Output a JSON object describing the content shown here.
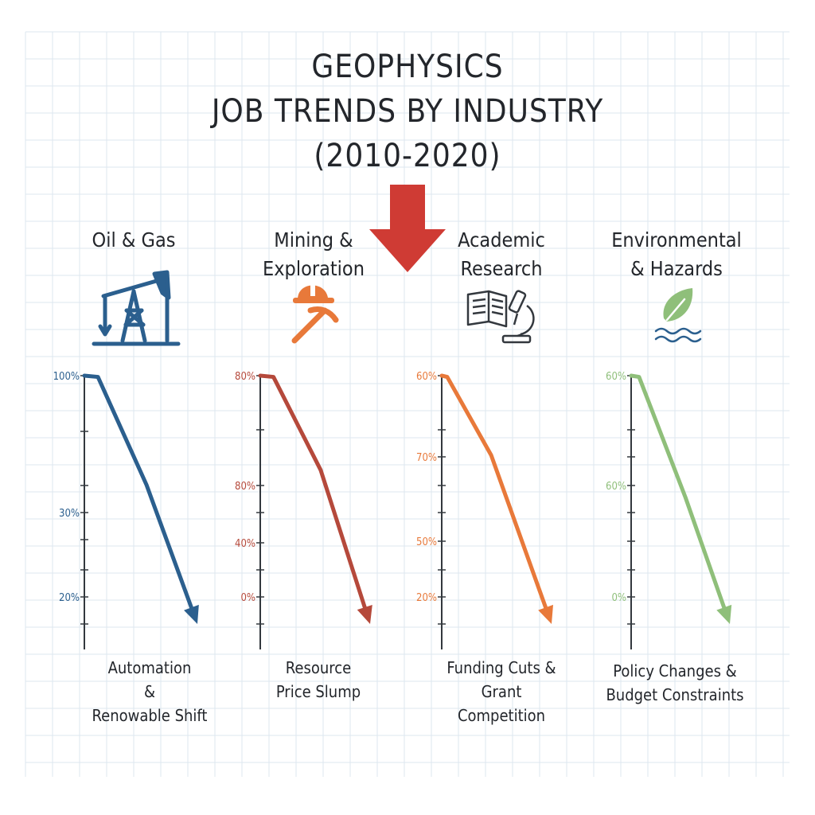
{
  "title": {
    "line1": "GEOPHYSICS",
    "line2": "JOB TRENDS BY INDUSTRY",
    "line3": "(2010-2020)"
  },
  "colors": {
    "title": "#23262b",
    "main_arrow": "#cf3b34",
    "grid": "#dde7ef"
  },
  "panels": [
    {
      "label_lines": [
        "Oil & Gas"
      ],
      "icon": "oil-pump-icon",
      "color": "#2b5f8e",
      "cause_lines": [
        "Automation",
        "&",
        "Renowable Shift"
      ]
    },
    {
      "label_lines": [
        "Mining &",
        "Exploration"
      ],
      "icon": "hardhat-pickaxe-icon",
      "color": "#b5493b",
      "cause_lines": [
        "Resource",
        "Price Slump"
      ]
    },
    {
      "label_lines": [
        "Academic",
        "Research"
      ],
      "icon": "book-microscope-icon",
      "color": "#e8793a",
      "cause_lines": [
        "Funding Cuts &",
        "Grant",
        "Competition"
      ]
    },
    {
      "label_lines": [
        "Environmental",
        "& Hazards"
      ],
      "icon": "leaf-water-icon",
      "color": "#8fbf7a",
      "cause_lines": [
        "Policy Changes &",
        "Budget Constraints"
      ]
    }
  ],
  "chart_data": [
    {
      "type": "line",
      "title": "Oil & Gas",
      "tick_labels": [
        "100%",
        "30%",
        "20%"
      ],
      "x": [
        0,
        0.12,
        0.55,
        1.0
      ],
      "y": [
        1.0,
        0.995,
        0.56,
        0.0
      ]
    },
    {
      "type": "line",
      "title": "Mining & Exploration",
      "tick_labels": [
        "80%",
        "80%",
        "40%",
        "0%"
      ],
      "x": [
        0,
        0.12,
        0.55,
        1.0
      ],
      "y": [
        1.0,
        0.995,
        0.62,
        0.0
      ]
    },
    {
      "type": "line",
      "title": "Academic Research",
      "tick_labels": [
        "60%",
        "70%",
        "50%",
        "20%"
      ],
      "x": [
        0,
        0.05,
        0.45,
        1.0
      ],
      "y": [
        1.0,
        0.995,
        0.68,
        0.0
      ]
    },
    {
      "type": "line",
      "title": "Environmental & Hazards",
      "tick_labels": [
        "60%",
        "60%",
        "0%"
      ],
      "x": [
        0,
        0.08,
        0.55,
        1.0
      ],
      "y": [
        1.0,
        0.995,
        0.51,
        0.0
      ]
    }
  ]
}
